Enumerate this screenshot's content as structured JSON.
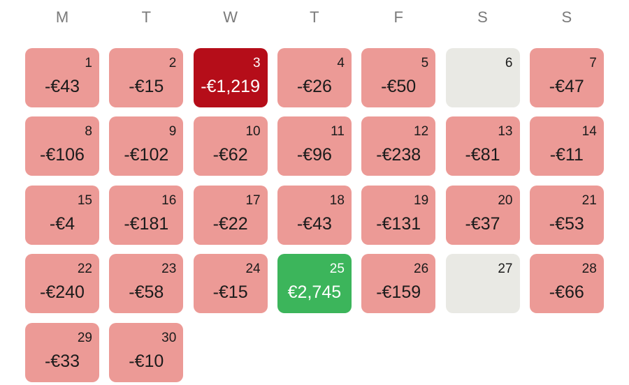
{
  "weekdays": [
    "M",
    "T",
    "W",
    "T",
    "F",
    "S",
    "S"
  ],
  "days": [
    {
      "day": "1",
      "amount": "-€43",
      "color": "#ec9a96"
    },
    {
      "day": "2",
      "amount": "-€15",
      "color": "#ec9a96"
    },
    {
      "day": "3",
      "amount": "-€1,219",
      "color": "#b50d19",
      "text_color": "#ffffff"
    },
    {
      "day": "4",
      "amount": "-€26",
      "color": "#ec9a96"
    },
    {
      "day": "5",
      "amount": "-€50",
      "color": "#ec9a96"
    },
    {
      "day": "6",
      "color": "#e9e9e4"
    },
    {
      "day": "7",
      "amount": "-€47",
      "color": "#ec9a96"
    },
    {
      "day": "8",
      "amount": "-€106",
      "color": "#ec9a96"
    },
    {
      "day": "9",
      "amount": "-€102",
      "color": "#ec9a96"
    },
    {
      "day": "10",
      "amount": "-€62",
      "color": "#ec9a96"
    },
    {
      "day": "11",
      "amount": "-€96",
      "color": "#ec9a96"
    },
    {
      "day": "12",
      "amount": "-€238",
      "color": "#ec9a96"
    },
    {
      "day": "13",
      "amount": "-€81",
      "color": "#ec9a96"
    },
    {
      "day": "14",
      "amount": "-€11",
      "color": "#ec9a96"
    },
    {
      "day": "15",
      "amount": "-€4",
      "color": "#ec9a96"
    },
    {
      "day": "16",
      "amount": "-€181",
      "color": "#ec9a96"
    },
    {
      "day": "17",
      "amount": "-€22",
      "color": "#ec9a96"
    },
    {
      "day": "18",
      "amount": "-€43",
      "color": "#ec9a96"
    },
    {
      "day": "19",
      "amount": "-€131",
      "color": "#ec9a96"
    },
    {
      "day": "20",
      "amount": "-€37",
      "color": "#ec9a96"
    },
    {
      "day": "21",
      "amount": "-€53",
      "color": "#ec9a96"
    },
    {
      "day": "22",
      "amount": "-€240",
      "color": "#ec9a96"
    },
    {
      "day": "23",
      "amount": "-€58",
      "color": "#ec9a96"
    },
    {
      "day": "24",
      "amount": "-€15",
      "color": "#ec9a96"
    },
    {
      "day": "25",
      "amount": "€2,745",
      "color": "#3cb55b",
      "text_color": "#ffffff"
    },
    {
      "day": "26",
      "amount": "-€159",
      "color": "#ec9a96"
    },
    {
      "day": "27",
      "color": "#e9e9e4"
    },
    {
      "day": "28",
      "amount": "-€66",
      "color": "#ec9a96"
    },
    {
      "day": "29",
      "amount": "-€33",
      "color": "#ec9a96"
    },
    {
      "day": "30",
      "amount": "-€10",
      "color": "#ec9a96"
    }
  ]
}
